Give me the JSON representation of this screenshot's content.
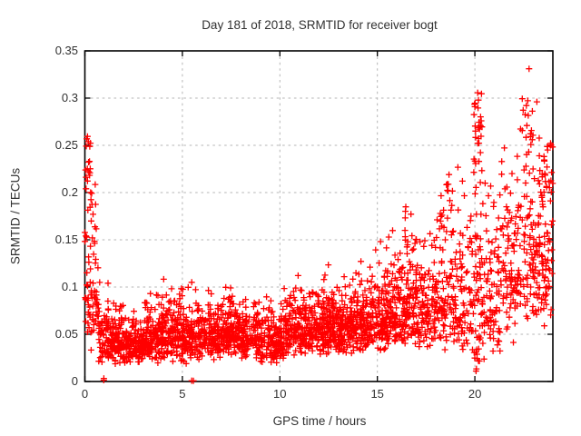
{
  "chart_data": {
    "type": "scatter",
    "title": "Day 181 of 2018, SRMTID for receiver bogt",
    "xlabel": "GPS time / hours",
    "ylabel": "SRMTID / TECUs",
    "xlim": [
      0,
      24
    ],
    "ylim": [
      0,
      0.35
    ],
    "xticks": [
      0,
      5,
      10,
      15,
      20
    ],
    "xtick_labels": [
      "0",
      "5",
      "10",
      "15",
      "20"
    ],
    "yticks": [
      0,
      0.05,
      0.1,
      0.15,
      0.2,
      0.25,
      0.3,
      0.35
    ],
    "ytick_labels": [
      "0",
      "0.05",
      "0.1",
      "0.15",
      "0.2",
      "0.25",
      "0.3",
      "0.35"
    ],
    "legend": "none",
    "grid": {
      "show": true,
      "style": "dashed",
      "color": "#b5b5b5"
    },
    "border_color": "#000000",
    "text_color": "#303030",
    "marker": {
      "shape": "plus",
      "color": "#ff0000",
      "size": 7,
      "stroke_width": 1.3
    },
    "seed": 181,
    "bin_format": [
      "x_start_hr",
      "x_end_hr",
      "count",
      "y_median",
      "log_sigma",
      "y_min",
      "y_max"
    ],
    "point_bins": [
      [
        0.0,
        0.3,
        36,
        0.115,
        0.45,
        0.04,
        0.26
      ],
      [
        0.3,
        0.7,
        40,
        0.085,
        0.42,
        0.03,
        0.21
      ],
      [
        0.7,
        1.2,
        60,
        0.05,
        0.38,
        0.012,
        0.13
      ],
      [
        1.2,
        2.0,
        115,
        0.042,
        0.33,
        0.013,
        0.085
      ],
      [
        2.0,
        3.0,
        135,
        0.04,
        0.32,
        0.012,
        0.08
      ],
      [
        3.0,
        4.0,
        135,
        0.044,
        0.32,
        0.014,
        0.095
      ],
      [
        4.0,
        5.0,
        135,
        0.05,
        0.33,
        0.018,
        0.115
      ],
      [
        5.0,
        6.0,
        135,
        0.048,
        0.33,
        0.015,
        0.115
      ],
      [
        6.0,
        7.0,
        130,
        0.05,
        0.3,
        0.02,
        0.1
      ],
      [
        7.0,
        7.8,
        105,
        0.055,
        0.32,
        0.022,
        0.13
      ],
      [
        7.8,
        9.0,
        145,
        0.046,
        0.3,
        0.015,
        0.1
      ],
      [
        9.0,
        10.2,
        150,
        0.042,
        0.32,
        0.01,
        0.09
      ],
      [
        10.2,
        11.5,
        160,
        0.055,
        0.3,
        0.02,
        0.115
      ],
      [
        11.5,
        12.5,
        150,
        0.06,
        0.3,
        0.025,
        0.135
      ],
      [
        12.5,
        13.5,
        150,
        0.058,
        0.3,
        0.025,
        0.12
      ],
      [
        13.5,
        14.5,
        140,
        0.065,
        0.3,
        0.028,
        0.14
      ],
      [
        14.5,
        15.5,
        130,
        0.068,
        0.32,
        0.025,
        0.155
      ],
      [
        15.5,
        16.3,
        110,
        0.075,
        0.33,
        0.028,
        0.16
      ],
      [
        16.3,
        17.0,
        95,
        0.085,
        0.36,
        0.03,
        0.19
      ],
      [
        17.0,
        18.0,
        110,
        0.08,
        0.35,
        0.02,
        0.16
      ],
      [
        18.0,
        19.0,
        100,
        0.09,
        0.38,
        0.03,
        0.22
      ],
      [
        19.0,
        19.7,
        65,
        0.08,
        0.45,
        0.02,
        0.24
      ],
      [
        19.7,
        20.5,
        75,
        0.09,
        0.55,
        0.008,
        0.27
      ],
      [
        20.5,
        21.3,
        75,
        0.1,
        0.45,
        0.03,
        0.21
      ],
      [
        21.3,
        22.3,
        85,
        0.115,
        0.4,
        0.04,
        0.25
      ],
      [
        22.3,
        23.2,
        85,
        0.13,
        0.4,
        0.04,
        0.3
      ],
      [
        23.2,
        24.0,
        85,
        0.14,
        0.38,
        0.05,
        0.26
      ]
    ],
    "cluster_format": [
      "x_start_hr",
      "x_end_hr",
      "count",
      "y_min",
      "y_max"
    ],
    "point_clusters": [
      [
        0.05,
        0.3,
        12,
        0.18,
        0.26
      ],
      [
        0.35,
        0.6,
        7,
        0.13,
        0.21
      ],
      [
        16.4,
        16.75,
        9,
        0.14,
        0.185
      ],
      [
        18.5,
        19.0,
        12,
        0.15,
        0.22
      ],
      [
        19.95,
        20.35,
        24,
        0.23,
        0.31
      ],
      [
        20.0,
        20.45,
        12,
        0.12,
        0.23
      ],
      [
        19.9,
        20.4,
        8,
        0.01,
        0.05
      ],
      [
        21.5,
        22.25,
        10,
        0.15,
        0.22
      ],
      [
        22.55,
        22.95,
        16,
        0.21,
        0.3
      ],
      [
        22.7,
        22.85,
        1,
        0.33,
        0.332
      ],
      [
        23.3,
        24.0,
        18,
        0.15,
        0.26
      ],
      [
        0.95,
        1.05,
        2,
        0.0,
        0.004
      ],
      [
        5.45,
        5.58,
        2,
        0.0,
        0.004
      ]
    ]
  }
}
